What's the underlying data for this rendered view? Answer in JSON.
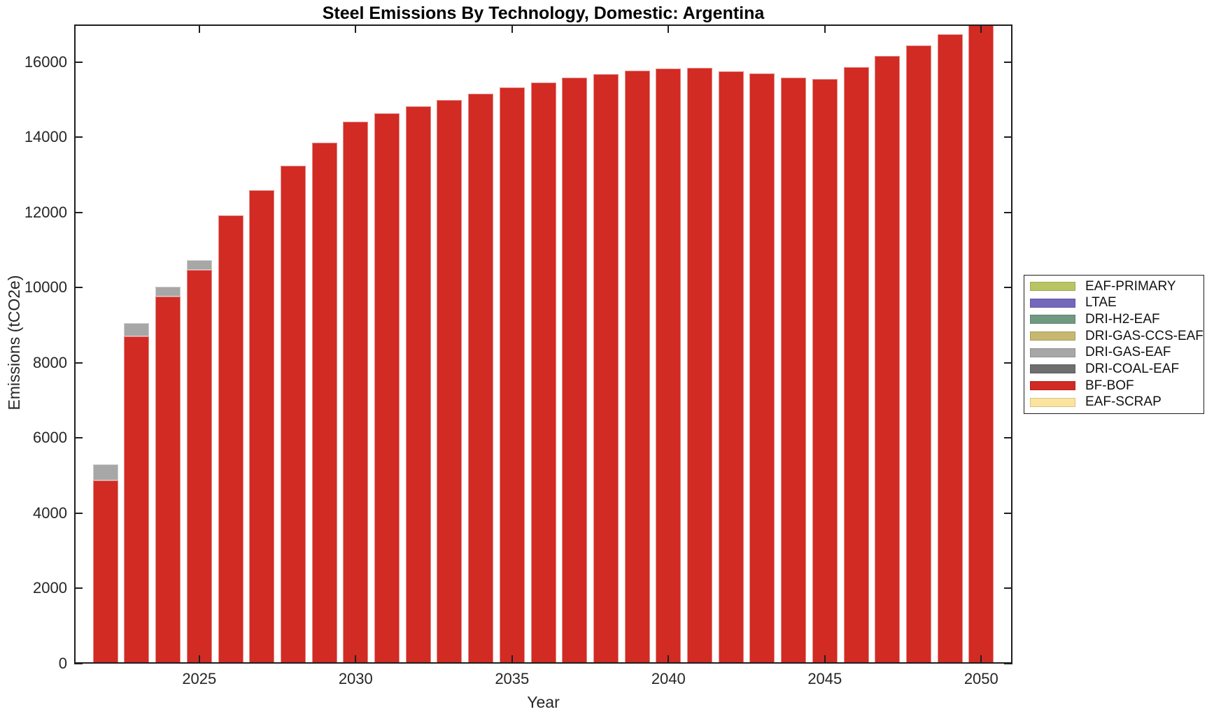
{
  "chart_data": {
    "type": "bar",
    "stacked": true,
    "title": "Steel Emissions By Technology, Domestic: Argentina",
    "xlabel": "Year",
    "ylabel": "Emissions (tCO2e)",
    "grid": false,
    "legend_position": "right-outside",
    "xlim": [
      2021,
      2051
    ],
    "ylim": [
      0,
      17000
    ],
    "xticks": [
      2025,
      2030,
      2035,
      2040,
      2045,
      2050
    ],
    "yticks": [
      0,
      2000,
      4000,
      6000,
      8000,
      10000,
      12000,
      14000,
      16000
    ],
    "x": [
      2022,
      2023,
      2024,
      2025,
      2026,
      2027,
      2028,
      2029,
      2030,
      2031,
      2032,
      2033,
      2034,
      2035,
      2036,
      2037,
      2038,
      2039,
      2040,
      2041,
      2042,
      2043,
      2044,
      2045,
      2046,
      2047,
      2048,
      2049,
      2050
    ],
    "series": [
      {
        "name": "BF-BOF",
        "color": "#d12b24",
        "values": [
          4870,
          8700,
          9770,
          10480,
          11930,
          12600,
          13250,
          13850,
          14410,
          14630,
          14820,
          14990,
          15150,
          15320,
          15450,
          15580,
          15680,
          15770,
          15830,
          15840,
          15750,
          15700,
          15580,
          15550,
          15860,
          16160,
          16440,
          16740,
          17000
        ]
      },
      {
        "name": "DRI-GAS-EAF",
        "color": "#a7a7a7",
        "values": [
          440,
          360,
          260,
          260,
          0,
          0,
          0,
          0,
          0,
          0,
          0,
          0,
          0,
          0,
          0,
          0,
          0,
          0,
          0,
          0,
          0,
          0,
          0,
          0,
          0,
          0,
          0,
          0,
          0
        ]
      }
    ],
    "legend_entries": [
      {
        "label": "EAF-PRIMARY",
        "color": "#b9c563"
      },
      {
        "label": "LTAE",
        "color": "#7468bd"
      },
      {
        "label": "DRI-H2-EAF",
        "color": "#6f9a81"
      },
      {
        "label": "DRI-GAS-CCS-EAF",
        "color": "#c6b870"
      },
      {
        "label": "DRI-GAS-EAF",
        "color": "#a7a7a7"
      },
      {
        "label": "DRI-COAL-EAF",
        "color": "#6e6e6e"
      },
      {
        "label": "BF-BOF",
        "color": "#d12b24"
      },
      {
        "label": "EAF-SCRAP",
        "color": "#fce49e"
      }
    ]
  }
}
